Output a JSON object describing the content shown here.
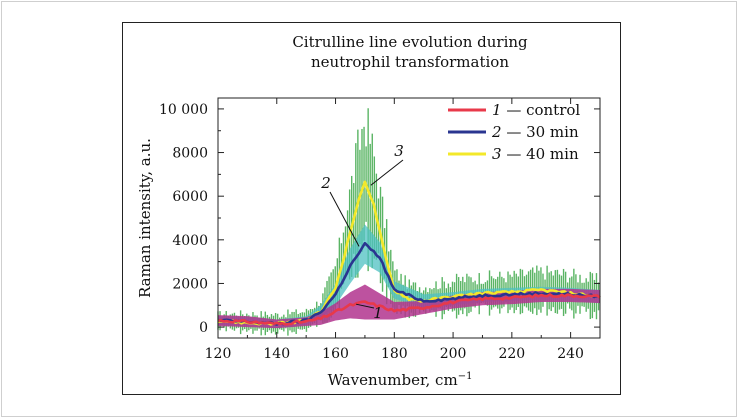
{
  "chart_data": {
    "type": "line",
    "title_lines": [
      "Citrulline line evolution during",
      "neutrophil transformation"
    ],
    "xlabel": "Wavenumber, cm",
    "xlabel_sup": "−1",
    "ylabel": "Raman intensity, a.u.",
    "xlim": [
      120,
      250
    ],
    "ylim": [
      -500,
      10500
    ],
    "xticks": [
      120,
      140,
      160,
      180,
      200,
      220,
      240
    ],
    "xtick_labels": [
      "120",
      "140",
      "160",
      "180",
      "200",
      "220",
      "240"
    ],
    "yticks": [
      0,
      2000,
      4000,
      6000,
      8000,
      10000
    ],
    "ytick_labels": [
      "0",
      "2000",
      "4000",
      "6000",
      "8000",
      "10 000"
    ],
    "legend_position": "top-right",
    "series": [
      {
        "id": "1",
        "name": "control",
        "color": "#e8394a",
        "band_color": "#b2348e",
        "x": [
          120,
          130,
          140,
          150,
          155,
          160,
          165,
          170,
          175,
          180,
          190,
          200,
          210,
          220,
          230,
          240,
          250
        ],
        "y": [
          300,
          250,
          150,
          250,
          400,
          700,
          1000,
          1150,
          950,
          750,
          900,
          1150,
          1300,
          1350,
          1450,
          1450,
          1400
        ],
        "band": [
          250,
          250,
          200,
          200,
          300,
          400,
          600,
          800,
          600,
          400,
          300,
          300,
          300,
          300,
          300,
          300,
          300
        ]
      },
      {
        "id": "2",
        "name": "30 min",
        "color": "#2a3590",
        "band_color": "#4ec0c2",
        "x": [
          120,
          130,
          140,
          150,
          155,
          160,
          165,
          170,
          175,
          180,
          190,
          200,
          210,
          220,
          230,
          240,
          250
        ],
        "y": [
          300,
          250,
          150,
          300,
          700,
          1500,
          2800,
          3800,
          3200,
          1700,
          1200,
          1300,
          1450,
          1500,
          1550,
          1500,
          1400
        ],
        "band": [
          200,
          200,
          200,
          200,
          300,
          500,
          800,
          900,
          700,
          400,
          300,
          300,
          300,
          300,
          300,
          300,
          300
        ]
      },
      {
        "id": "3",
        "name": "40 min",
        "color": "#f3e82a",
        "band_color": "#3ea84a",
        "x": [
          120,
          130,
          140,
          150,
          155,
          160,
          163,
          167,
          170,
          173,
          177,
          180,
          185,
          190,
          200,
          210,
          220,
          230,
          240,
          250
        ],
        "y": [
          300,
          200,
          150,
          300,
          700,
          1800,
          3300,
          5400,
          6700,
          5600,
          3200,
          1700,
          1300,
          1200,
          1400,
          1550,
          1600,
          1700,
          1550,
          1400
        ],
        "band": [
          300,
          400,
          400,
          400,
          500,
          900,
          1400,
          2200,
          2800,
          2200,
          1400,
          800,
          600,
          600,
          700,
          700,
          700,
          800,
          800,
          700
        ]
      }
    ],
    "annotations": [
      {
        "text": "1",
        "series": "1"
      },
      {
        "text": "2",
        "series": "2"
      },
      {
        "text": "3",
        "series": "3"
      }
    ]
  },
  "legend": {
    "items": [
      {
        "num": "1",
        "label": "— control"
      },
      {
        "num": "2",
        "label": "— 30 min"
      },
      {
        "num": "3",
        "label": "— 40 min"
      }
    ]
  }
}
